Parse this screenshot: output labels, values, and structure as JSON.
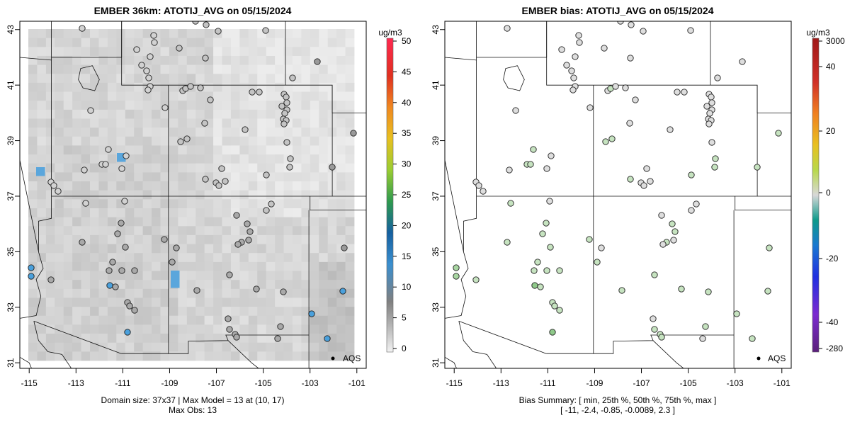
{
  "panels": [
    {
      "id": "left",
      "title": "EMBER 36km: ATOTIJ_AVG on 05/15/2024",
      "colorbar": {
        "units": "ug/m3",
        "ticks": [
          "0",
          "5",
          "10",
          "15",
          "20",
          "25",
          "30",
          "35",
          "40",
          "45",
          "50"
        ],
        "range": [
          0,
          50
        ]
      },
      "x_ticks": [
        "-115",
        "-113",
        "-111",
        "-109",
        "-107",
        "-105",
        "-103",
        "-101"
      ],
      "y_ticks": [
        "43",
        "41",
        "39",
        "37",
        "35",
        "33",
        "31"
      ],
      "legend": "AQS",
      "caption": [
        "Domain size: 37x37 | Max Model = 13 at (10, 17)",
        "Max Obs: 13"
      ]
    },
    {
      "id": "right",
      "title": "EMBER bias: ATOTIJ_AVG on 05/15/2024",
      "colorbar": {
        "units": "ug/m3",
        "ticks": [
          "3000",
          "40",
          "20",
          "0",
          "-20",
          "-40",
          "-280"
        ]
      },
      "x_ticks": [
        "-115",
        "-113",
        "-111",
        "-109",
        "-107",
        "-105",
        "-103",
        "-101"
      ],
      "y_ticks": [
        "43",
        "41",
        "39",
        "37",
        "35",
        "33",
        "31"
      ],
      "legend": "AQS",
      "caption": [
        "Bias Summary: [ min, 25th %, 50th %, 75th %, max ]",
        "[ -11,   -2.4,   -0.85,   -0.0089,   2.3 ]"
      ]
    }
  ],
  "map_extent": {
    "lon": [
      -115.4,
      -100.6
    ],
    "lat": [
      30.8,
      43.3
    ]
  },
  "colors": {
    "land_grey": "#cfcfcf",
    "light_grey": "#e6e6e6",
    "bias_green": "#c8e4c4",
    "blue": "#4a9fd8"
  }
}
